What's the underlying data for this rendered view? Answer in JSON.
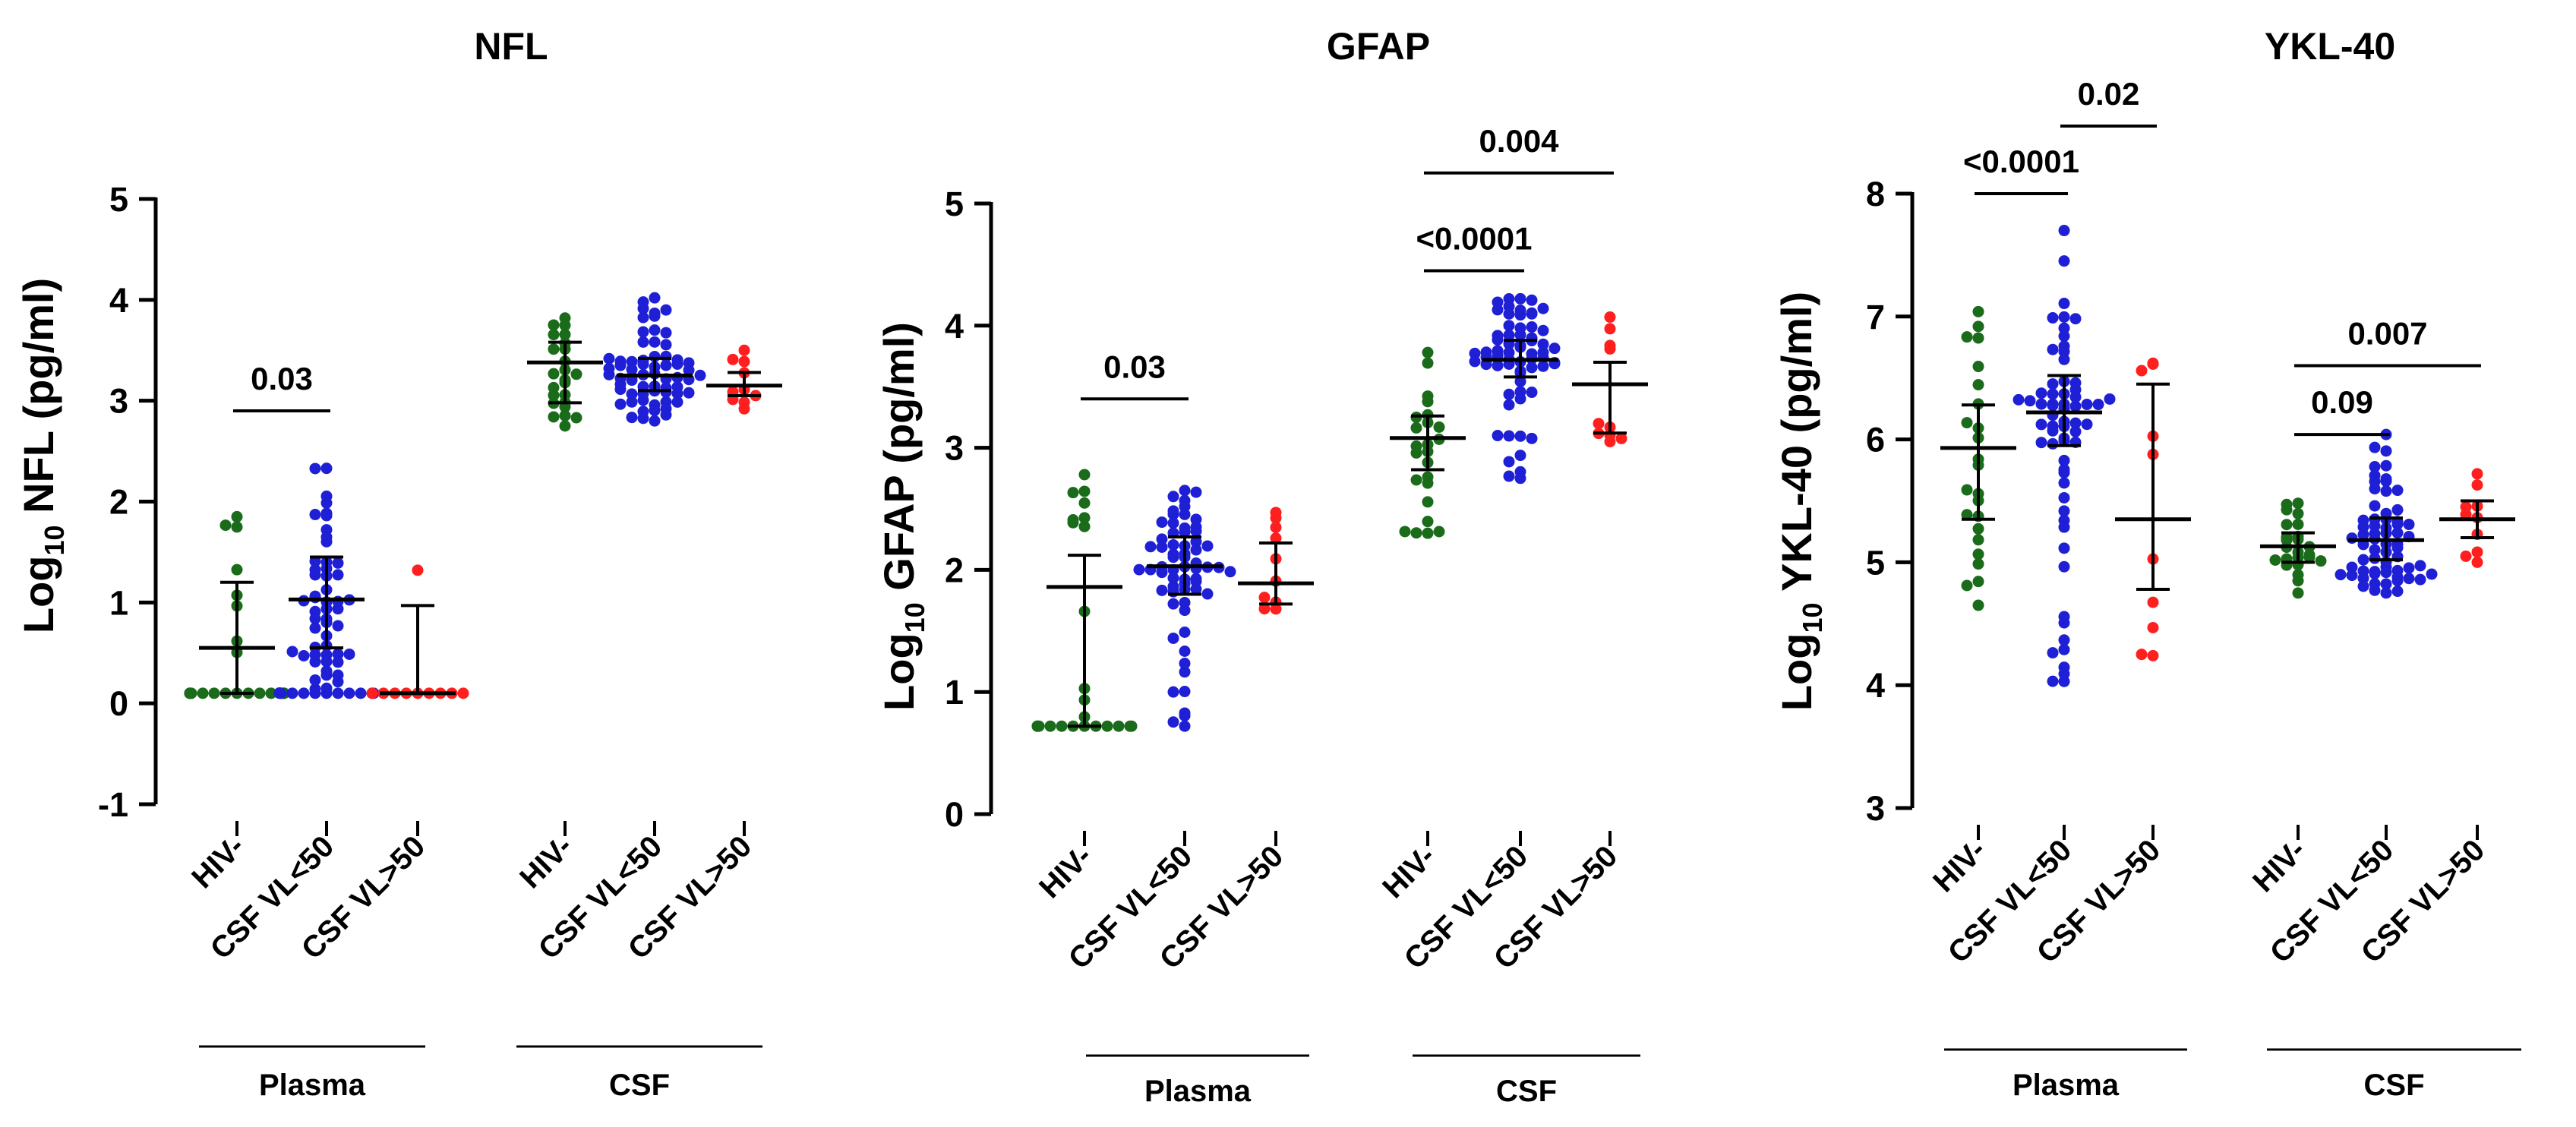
{
  "chart_data": [
    {
      "type": "scatter",
      "title": "NFL",
      "ylabel": {
        "prefix": "Log",
        "subscript": "10",
        "rest": " NFL (pg/ml)"
      },
      "ylim": [
        -1,
        5
      ],
      "yticks": [
        "-1",
        "0",
        "1",
        "2",
        "3",
        "4",
        "5"
      ],
      "categories": [
        "HIV-",
        "CSF VL<50",
        "CSF VL>50",
        "HIV-",
        "CSF VL<50",
        "CSF VL>50"
      ],
      "groups": [
        "Plasma",
        "CSF"
      ],
      "colors": [
        "#1a6b1a",
        "#1f1fd6",
        "#ff1f1f",
        "#1a6b1a",
        "#1f1fd6",
        "#ff1f1f"
      ],
      "series": [
        {
          "group": "Plasma",
          "name": "HIV-",
          "n": 24,
          "min": 0.1,
          "max": 1.85,
          "median": 0.55,
          "q1": 0.1,
          "q3": 1.2,
          "floor": 0.1,
          "floor_n": 8
        },
        {
          "group": "Plasma",
          "name": "CSF VL<50",
          "n": 64,
          "min": 0.1,
          "max": 2.33,
          "median": 1.03,
          "q1": 0.55,
          "q3": 1.45,
          "floor": 0.1,
          "floor_n": 10
        },
        {
          "group": "Plasma",
          "name": "CSF VL>50",
          "n": 10,
          "min": 0.1,
          "max": 1.32,
          "median": 0.1,
          "q1": 0.1,
          "q3": 0.97,
          "floor": 0.1,
          "floor_n": 6
        },
        {
          "group": "CSF",
          "name": "HIV-",
          "n": 24,
          "min": 2.75,
          "max": 3.82,
          "median": 3.38,
          "q1": 2.98,
          "q3": 3.58
        },
        {
          "group": "CSF",
          "name": "CSF VL<50",
          "n": 64,
          "min": 2.8,
          "max": 4.02,
          "median": 3.25,
          "q1": 3.1,
          "q3": 3.42
        },
        {
          "group": "CSF",
          "name": "CSF VL>50",
          "n": 10,
          "min": 2.92,
          "max": 3.5,
          "median": 3.15,
          "q1": 3.05,
          "q3": 3.28
        }
      ],
      "comparisons": [
        {
          "from": 0,
          "to": 1,
          "y": 2.9,
          "label": "0.03"
        }
      ]
    },
    {
      "type": "scatter",
      "title": "GFAP",
      "ylabel": {
        "prefix": "Log",
        "subscript": "10",
        "rest": " GFAP (pg/ml)"
      },
      "ylim": [
        0,
        5
      ],
      "yticks": [
        "0",
        "1",
        "2",
        "3",
        "4",
        "5"
      ],
      "categories": [
        "HIV-",
        "CSF VL<50",
        "CSF VL>50",
        "HIV-",
        "CSF VL<50",
        "CSF VL>50"
      ],
      "groups": [
        "Plasma",
        "CSF"
      ],
      "colors": [
        "#1a6b1a",
        "#1f1fd6",
        "#ff1f1f",
        "#1a6b1a",
        "#1f1fd6",
        "#ff1f1f"
      ],
      "series": [
        {
          "group": "Plasma",
          "name": "HIV-",
          "n": 24,
          "min": 0.72,
          "max": 2.78,
          "median": 1.86,
          "q1": 0.72,
          "q3": 2.12,
          "floor": 0.72,
          "floor_n": 6
        },
        {
          "group": "Plasma",
          "name": "CSF VL<50",
          "n": 64,
          "min": 0.72,
          "max": 2.65,
          "median": 2.03,
          "q1": 1.8,
          "q3": 2.27
        },
        {
          "group": "Plasma",
          "name": "CSF VL>50",
          "n": 10,
          "min": 1.68,
          "max": 2.47,
          "median": 1.89,
          "q1": 1.72,
          "q3": 2.22
        },
        {
          "group": "CSF",
          "name": "HIV-",
          "n": 24,
          "min": 2.3,
          "max": 3.78,
          "median": 3.08,
          "q1": 2.82,
          "q3": 3.26
        },
        {
          "group": "CSF",
          "name": "CSF VL<50",
          "n": 64,
          "min": 2.75,
          "max": 4.22,
          "median": 3.72,
          "q1": 3.58,
          "q3": 3.88
        },
        {
          "group": "CSF",
          "name": "CSF VL>50",
          "n": 10,
          "min": 3.05,
          "max": 4.07,
          "median": 3.52,
          "q1": 3.12,
          "q3": 3.7
        }
      ],
      "comparisons": [
        {
          "from": 0,
          "to": 1,
          "y": 3.4,
          "label": "0.03"
        },
        {
          "from": 3,
          "to": 4,
          "y": 4.45,
          "label": "<0.0001"
        },
        {
          "from": 3,
          "to": 5,
          "y": 5.25,
          "label": "0.004"
        }
      ]
    },
    {
      "type": "scatter",
      "title": "YKL-40",
      "ylabel": {
        "prefix": "Log",
        "subscript": "10",
        "rest": " YKL-40 (pg/ml)"
      },
      "ylim": [
        3,
        8
      ],
      "yticks": [
        "3",
        "4",
        "5",
        "6",
        "7",
        "8"
      ],
      "categories": [
        "HIV-",
        "CSF VL<50",
        "CSF VL>50",
        "HIV-",
        "CSF VL<50",
        "CSF VL>50"
      ],
      "groups": [
        "Plasma",
        "CSF"
      ],
      "colors": [
        "#1a6b1a",
        "#1f1fd6",
        "#ff1f1f",
        "#1a6b1a",
        "#1f1fd6",
        "#ff1f1f"
      ],
      "series": [
        {
          "group": "Plasma",
          "name": "HIV-",
          "n": 24,
          "min": 4.65,
          "max": 7.04,
          "median": 5.93,
          "q1": 5.35,
          "q3": 6.28
        },
        {
          "group": "Plasma",
          "name": "CSF VL<50",
          "n": 64,
          "min": 4.03,
          "max": 7.7,
          "median": 6.22,
          "q1": 5.95,
          "q3": 6.52
        },
        {
          "group": "Plasma",
          "name": "CSF VL>50",
          "n": 10,
          "min": 4.24,
          "max": 6.62,
          "median": 5.35,
          "q1": 4.78,
          "q3": 6.45
        },
        {
          "group": "CSF",
          "name": "HIV-",
          "n": 24,
          "min": 4.75,
          "max": 5.48,
          "median": 5.13,
          "q1": 5.0,
          "q3": 5.24
        },
        {
          "group": "CSF",
          "name": "CSF VL<50",
          "n": 64,
          "min": 4.75,
          "max": 6.04,
          "median": 5.18,
          "q1": 5.02,
          "q3": 5.36
        },
        {
          "group": "CSF",
          "name": "CSF VL>50",
          "n": 10,
          "min": 5.0,
          "max": 5.72,
          "median": 5.35,
          "q1": 5.2,
          "q3": 5.5
        }
      ],
      "comparisons": [
        {
          "from": 0,
          "to": 1,
          "y": 8.0,
          "label": "<0.0001"
        },
        {
          "from": 1,
          "to": 2,
          "y": 8.55,
          "label": "0.02"
        },
        {
          "from": 3,
          "to": 4,
          "y": 6.04,
          "label": "0.09"
        },
        {
          "from": 3,
          "to": 5,
          "y": 6.6,
          "label": "0.007"
        }
      ]
    }
  ]
}
